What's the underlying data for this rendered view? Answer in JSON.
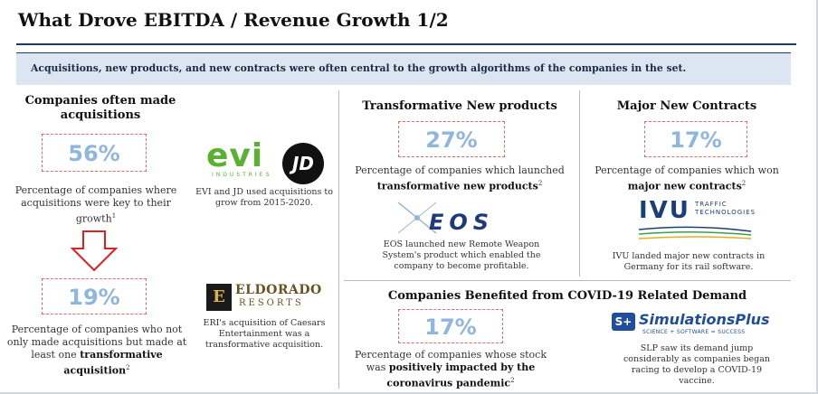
{
  "title": "What Drove EBITDA / Revenue Growth 1/2",
  "banner": "Acquisitions, new products, and new contracts were often central to the growth algorithms of the companies in the set.",
  "acquisitions": {
    "heading": "Companies often made acquisitions",
    "stat1": "56%",
    "desc1_line1": "Percentage of companies where",
    "desc1_line2": "acquisitions were key to their",
    "desc1_line3": "growth",
    "desc1_sup": "1",
    "stat2": "19%",
    "desc2_line1": "Percentage of companies who not",
    "desc2_line2": "only made acquisitions but made at",
    "desc2_line3": "least one",
    "desc2_bold1": "transformative",
    "desc2_bold2": "acquisition",
    "desc2_sup": "2",
    "evi_logo": "evi",
    "evi_sub": "INDUSTRIES",
    "jd_logo": "JD",
    "evi_caption_line1": "EVI and JD used acquisitions to",
    "evi_caption_line2": "grow from 2015-2020.",
    "eldorado_logo_line1": "ELDORADO",
    "eldorado_logo_line2": "RESORTS",
    "eldorado_mark": "E",
    "eri_caption_line1": "ERI's acquisition of Caesars",
    "eri_caption_line2": "Entertainment was a",
    "eri_caption_line3": "transformative acquisition."
  },
  "products": {
    "heading": "Transformative New products",
    "stat": "27%",
    "desc_line1": "Percentage of companies which launched",
    "desc_bold": "transformative new products",
    "desc_sup": "2",
    "eos_logo": "EOS",
    "caption_line1": "EOS launched new Remote Weapon",
    "caption_line2": "System's product which enabled the",
    "caption_line3": "company to become profitable."
  },
  "contracts": {
    "heading": "Major New Contracts",
    "stat": "17%",
    "desc_line1": "Percentage of companies which won",
    "desc_bold": "major new contracts",
    "desc_sup": "2",
    "ivu_logo": "IVU",
    "ivu_sub1": "TRAFFIC",
    "ivu_sub2": "TECHNOLOGIES",
    "caption_line1": "IVU landed major new contracts in",
    "caption_line2": "Germany for its rail software."
  },
  "covid": {
    "heading": "Companies Benefited from COVID-19 Related Demand",
    "stat": "17%",
    "desc_line1": "Percentage of companies whose stock",
    "desc_line2a": "was",
    "desc_bold1": "positively impacted by the",
    "desc_bold2": "coronavirus pandemic",
    "desc_sup": "2",
    "slp_mark": "S+",
    "slp_logo": "SimulationsPlus",
    "slp_tag": "SCIENCE + SOFTWARE = SUCCESS",
    "caption_line1": "SLP saw its demand jump",
    "caption_line2": "considerably as companies began",
    "caption_line3": "racing to develop a COVID-19",
    "caption_line4": "vaccine."
  },
  "colors": {
    "navy": "#1f3a5c",
    "stat_blue": "#8fb6dd",
    "dashed_red": "#e06a6a",
    "banner_bg": "#dbe6f2",
    "evi_green": "#5ab031",
    "ivu_blue": "#1a3e7a",
    "slp_blue": "#1f4f9c"
  }
}
